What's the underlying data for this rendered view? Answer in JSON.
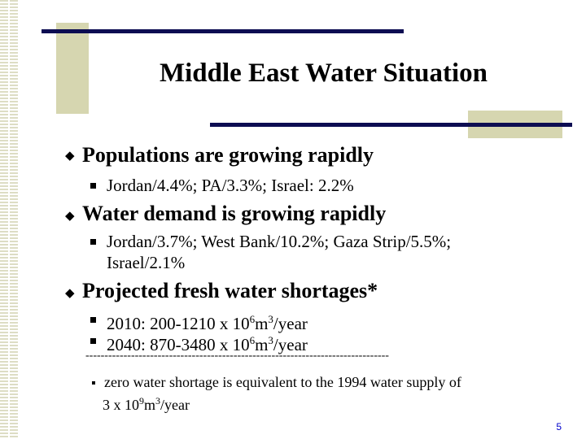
{
  "slide": {
    "title": "Middle East Water Situation",
    "page_number": "5",
    "bullets": [
      {
        "text": "Populations are growing rapidly",
        "sub": [
          "Jordan/4.4%; PA/3.3%; Israel: 2.2%"
        ]
      },
      {
        "text": "Water demand is growing rapidly",
        "sub_lines": [
          "Jordan/3.7%; West Bank/10.2%; Gaza Strip/5.5%;",
          "Israel/2.1%"
        ]
      },
      {
        "text": "Projected fresh water shortages*",
        "sub_items": [
          {
            "pre": "2010: 200-1210 x 10",
            "exp": "6",
            "mid": "m",
            "exp2": "3",
            "post": "/year"
          },
          {
            "pre": "2040: 870-3480 x 10",
            "exp": "6",
            "mid": "m",
            "exp2": "3",
            "post": "/year"
          }
        ]
      }
    ],
    "separator": "--------------------------------------------------------------------------------",
    "footnote": {
      "line1": "zero water shortage is equivalent to the 1994 water supply of",
      "line2_pre": "3 x 10",
      "line2_exp": "9",
      "line2_mid": "m",
      "line2_exp2": "3",
      "line2_post": "/year"
    }
  },
  "icons": {
    "bullet_l1": "diamond-bullet-icon",
    "bullet_l2": "square-bullet-icon"
  }
}
